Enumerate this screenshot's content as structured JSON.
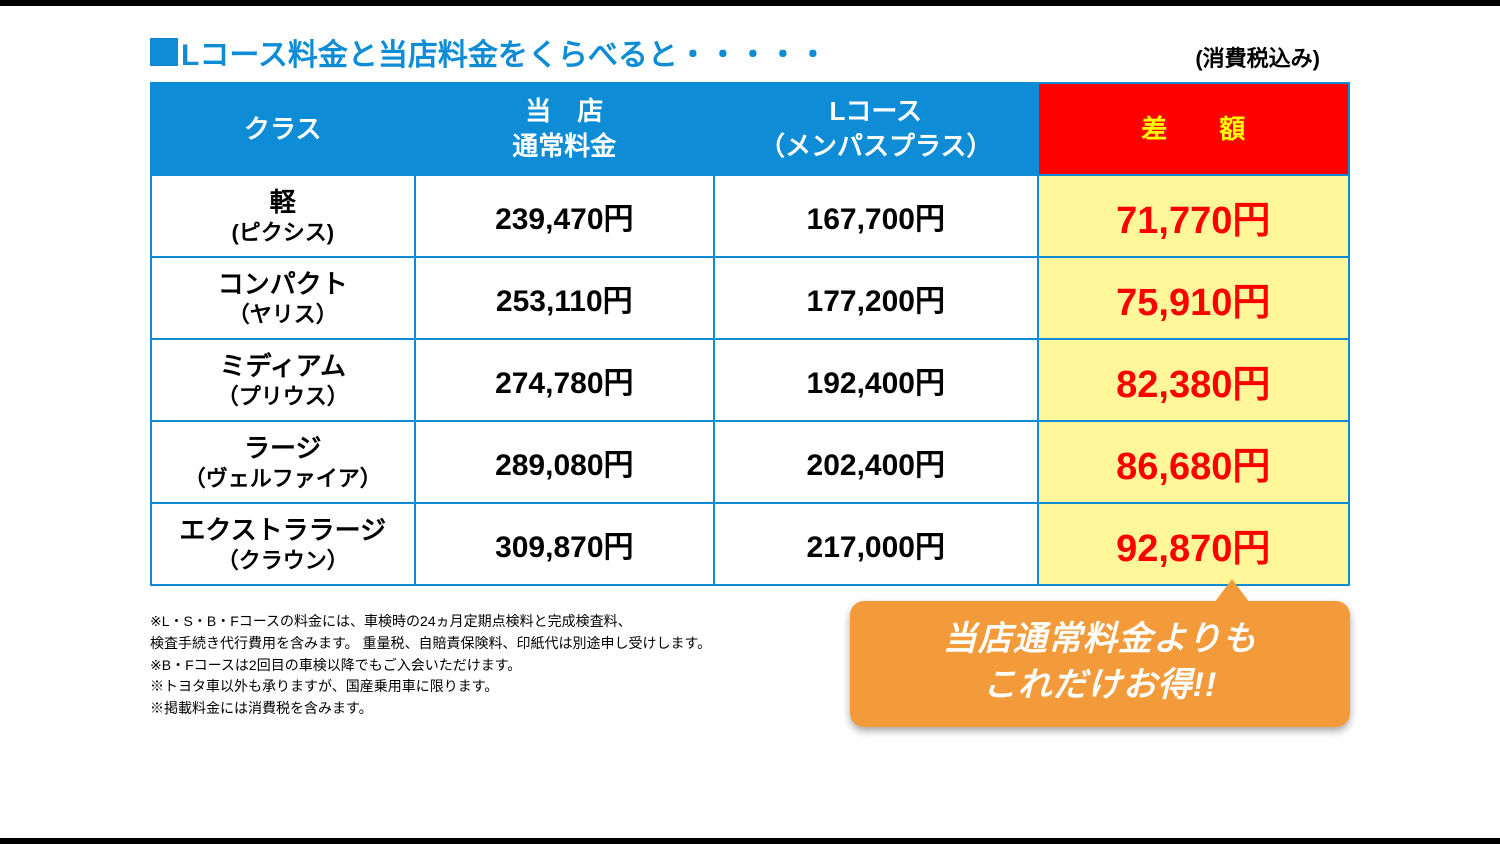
{
  "colors": {
    "blue": "#0e8dd6",
    "red": "#ff0000",
    "yellow_highlight": "#fff79a",
    "orange_callout": "#f39a3a",
    "orange_arrow": "#f39a3a",
    "diff_text": "#ff0000",
    "white": "#ffffff",
    "header_diff_text": "#ffff00",
    "border_blue": "#0e8dd6",
    "title_text": "#0e8dd6",
    "callout_text": "#ffffff"
  },
  "title": "Lコース料金と当店料金をくらべると・・・・・",
  "tax_note": "(消費税込み)",
  "table": {
    "headers": {
      "class": "クラス",
      "store_price": "当　店\n通常料金",
      "l_course": "Lコース\n（メンパスプラス）",
      "difference": "差　　額"
    },
    "col_widths_pct": [
      22,
      25,
      27,
      26
    ],
    "rows": [
      {
        "class_main": "軽",
        "class_sub": "(ピクシス)",
        "store": "239,470円",
        "lcourse": "167,700円",
        "diff": "71,770円"
      },
      {
        "class_main": "コンパクト",
        "class_sub": "（ヤリス）",
        "store": "253,110円",
        "lcourse": "177,200円",
        "diff": "75,910円"
      },
      {
        "class_main": "ミディアム",
        "class_sub": "（プリウス）",
        "store": "274,780円",
        "lcourse": "192,400円",
        "diff": "82,380円"
      },
      {
        "class_main": "ラージ",
        "class_sub": "（ヴェルファイア）",
        "store": "289,080円",
        "lcourse": "202,400円",
        "diff": "86,680円"
      },
      {
        "class_main": "エクストララージ",
        "class_sub": "（クラウン）",
        "store": "309,870円",
        "lcourse": "217,000円",
        "diff": "92,870円"
      }
    ]
  },
  "notes": [
    "※L・S・B・Fコースの料金には、車検時の24ヵ月定期点検料と完成検査料、",
    "検査手続き代行費用を含みます。 重量税、自賠責保険料、印紙代は別途申し受けします。",
    "※B・Fコースは2回目の車検以降でもご入会いただけます。",
    "※トヨタ車以外も承りますが、国産乗用車に限ります。",
    "※掲載料金には消費税を含みます。"
  ],
  "callout": {
    "line1": "当店通常料金よりも",
    "line2": "これだけお得!!"
  }
}
